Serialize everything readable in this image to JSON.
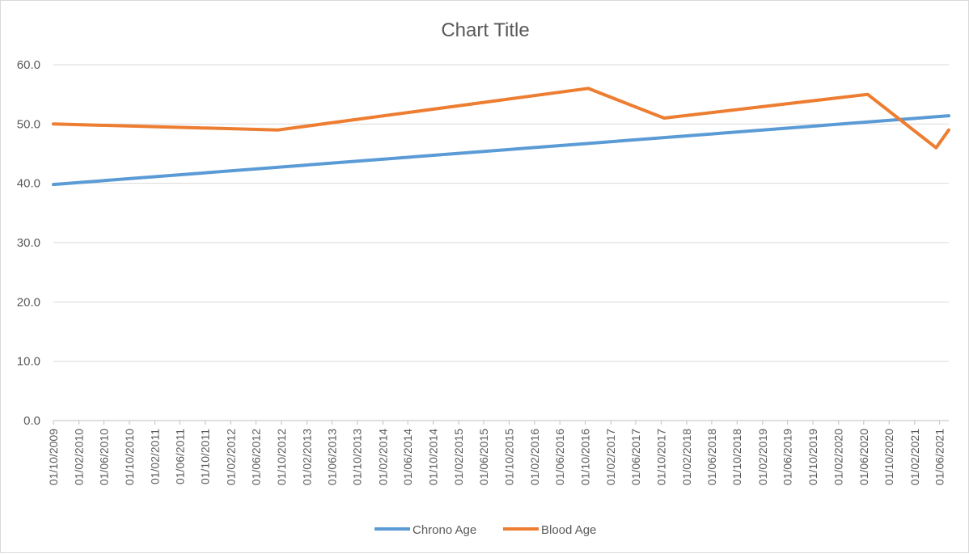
{
  "chart_data": {
    "type": "line",
    "title": "Chart Title",
    "xlabel": "",
    "ylabel": "",
    "x_axis_type": "date",
    "xlim": [
      "2009-10-01",
      "2021-07-15"
    ],
    "ylim": [
      0,
      60
    ],
    "y_ticks": [
      0,
      10,
      20,
      30,
      40,
      50,
      60
    ],
    "y_tick_labels": [
      "0.0",
      "10.0",
      "20.0",
      "30.0",
      "40.0",
      "50.0",
      "60.0"
    ],
    "x_tick_labels": [
      "01/10/2009",
      "01/02/2010",
      "01/06/2010",
      "01/10/2010",
      "01/02/2011",
      "01/06/2011",
      "01/10/2011",
      "01/02/2012",
      "01/06/2012",
      "01/10/2012",
      "01/02/2013",
      "01/06/2013",
      "01/10/2013",
      "01/02/2014",
      "01/06/2014",
      "01/10/2014",
      "01/02/2015",
      "01/06/2015",
      "01/10/2015",
      "01/02/2016",
      "01/06/2016",
      "01/10/2016",
      "01/02/2017",
      "01/06/2017",
      "01/10/2017",
      "01/02/2018",
      "01/06/2018",
      "01/10/2018",
      "01/02/2019",
      "01/06/2019",
      "01/10/2019",
      "01/02/2020",
      "01/06/2020",
      "01/10/2020",
      "01/02/2021",
      "01/06/2021"
    ],
    "grid": true,
    "legend_position": "bottom",
    "series": [
      {
        "name": "Chrono Age",
        "color": "#5b9bd5",
        "points": [
          {
            "x": "2009-10-01",
            "y": 39.8
          },
          {
            "x": "2021-07-15",
            "y": 51.4
          }
        ]
      },
      {
        "name": "Blood Age",
        "color": "#ed7d31",
        "points": [
          {
            "x": "2009-10-01",
            "y": 50.0
          },
          {
            "x": "2012-09-15",
            "y": 49.0
          },
          {
            "x": "2016-10-15",
            "y": 56.0
          },
          {
            "x": "2017-10-15",
            "y": 51.0
          },
          {
            "x": "2020-06-20",
            "y": 55.0
          },
          {
            "x": "2021-05-15",
            "y": 46.0
          },
          {
            "x": "2021-07-15",
            "y": 49.0
          }
        ]
      }
    ]
  }
}
